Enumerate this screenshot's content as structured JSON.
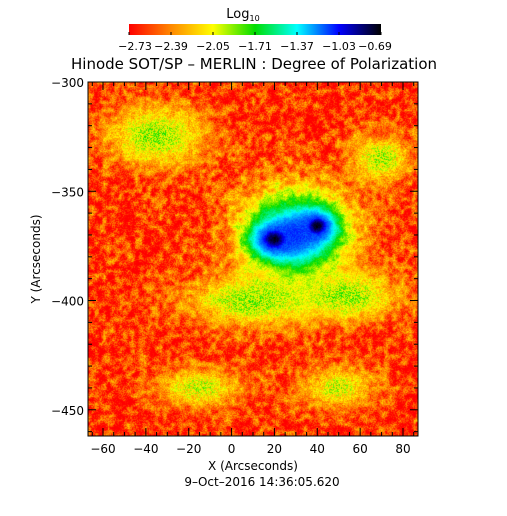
{
  "chart_data": {
    "type": "heatmap",
    "title": "Hinode SOT/SP – MERLIN : Degree of Polarization",
    "xlabel": "X (Arcseconds)",
    "ylabel": "Y (Arcseconds)",
    "timestamp": "9–Oct–2016 14:36:05.620",
    "xlim": [
      -67,
      87
    ],
    "ylim": [
      -462,
      -300
    ],
    "x_ticks": [
      {
        "value": -60,
        "label": "−60"
      },
      {
        "value": -40,
        "label": "−40"
      },
      {
        "value": -20,
        "label": "−20"
      },
      {
        "value": 0,
        "label": "0"
      },
      {
        "value": 20,
        "label": "20"
      },
      {
        "value": 40,
        "label": "40"
      },
      {
        "value": 60,
        "label": "60"
      },
      {
        "value": 80,
        "label": "80"
      }
    ],
    "y_ticks": [
      {
        "value": -300,
        "label": "−300"
      },
      {
        "value": -350,
        "label": "−350"
      },
      {
        "value": -400,
        "label": "−400"
      },
      {
        "value": -450,
        "label": "−450"
      }
    ],
    "colorbar": {
      "label_main": "Log",
      "label_sub": "10",
      "min": -2.73,
      "max": -0.69,
      "tick_labels": [
        "−2.73",
        "−2.39",
        "−2.05",
        "−1.71",
        "−1.37",
        "−1.03",
        "−0.69"
      ],
      "colormap": [
        "#ff0000",
        "#ff8800",
        "#ffff00",
        "#00dd00",
        "#00ffff",
        "#0000ff",
        "#000000"
      ]
    },
    "features": [
      {
        "kind": "umbra",
        "x": 20,
        "y": -372,
        "rx": 16,
        "ry": 12,
        "value": -0.72
      },
      {
        "kind": "umbra",
        "x": 40,
        "y": -366,
        "rx": 13,
        "ry": 11,
        "value": -0.72
      },
      {
        "kind": "penumbra",
        "x": 30,
        "y": -370,
        "rx": 36,
        "ry": 30,
        "value": -1.1
      },
      {
        "kind": "plage",
        "x": -35,
        "y": -325,
        "rx": 30,
        "ry": 18,
        "value": -1.9
      },
      {
        "kind": "plage",
        "x": 10,
        "y": -400,
        "rx": 40,
        "ry": 15,
        "value": -1.9
      },
      {
        "kind": "plage",
        "x": 55,
        "y": -398,
        "rx": 30,
        "ry": 14,
        "value": -1.9
      },
      {
        "kind": "plage",
        "x": 70,
        "y": -335,
        "rx": 18,
        "ry": 14,
        "value": -1.95
      },
      {
        "kind": "plage",
        "x": -15,
        "y": -440,
        "rx": 25,
        "ry": 12,
        "value": -2.0
      },
      {
        "kind": "plage",
        "x": 50,
        "y": -440,
        "rx": 22,
        "ry": 12,
        "value": -2.0
      }
    ],
    "background_value": -2.6
  }
}
